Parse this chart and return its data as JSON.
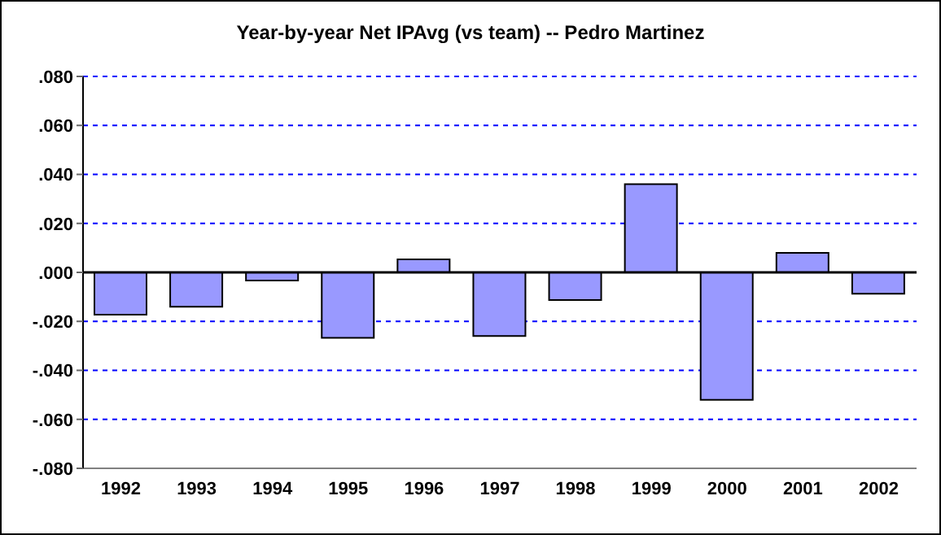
{
  "chart_data": {
    "type": "bar",
    "title": "Year-by-year Net IPAvg (vs team) -- Pedro Martinez",
    "categories": [
      "1992",
      "1993",
      "1994",
      "1995",
      "1996",
      "1997",
      "1998",
      "1999",
      "2000",
      "2001",
      "2002"
    ],
    "values": [
      -0.0173,
      -0.014,
      -0.0033,
      -0.0267,
      0.0053,
      -0.026,
      -0.0113,
      0.036,
      -0.052,
      0.008,
      -0.0087
    ],
    "color": "#9999ff",
    "ylim": [
      -0.08,
      0.08
    ],
    "yticks": [
      {
        "value": -0.08,
        "label": "-.080"
      },
      {
        "value": -0.06,
        "label": "-.060"
      },
      {
        "value": -0.04,
        "label": "-.040"
      },
      {
        "value": -0.02,
        "label": "-.020"
      },
      {
        "value": 0,
        "label": ".000"
      },
      {
        "value": 0.02,
        "label": ".020"
      },
      {
        "value": 0.04,
        "label": ".040"
      },
      {
        "value": 0.06,
        "label": ".060"
      },
      {
        "value": 0.08,
        "label": ".080"
      }
    ],
    "ref_lines": [
      {
        "axis": "y",
        "value": 0,
        "color": "#000000"
      }
    ],
    "grid": "y"
  }
}
